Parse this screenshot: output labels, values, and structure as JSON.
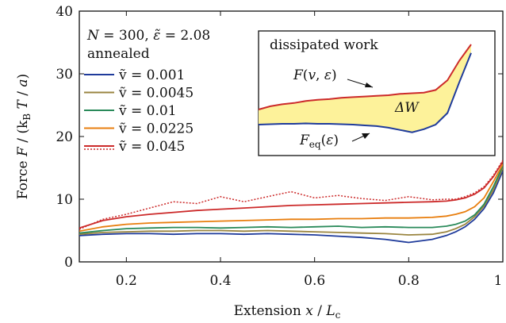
{
  "chart_data": {
    "type": "line",
    "xlabel": "Extension x / L_c",
    "ylabel": "Force F / (k_B T / a)",
    "xlim": [
      0.1,
      1.0
    ],
    "ylim": [
      0,
      40
    ],
    "xticks": [
      "0.2",
      "0.4",
      "0.6",
      "0.8",
      "1"
    ],
    "yticks": [
      "0",
      "10",
      "20",
      "30",
      "40"
    ],
    "grid": false,
    "legend": {
      "placement": "top-left",
      "header_line1": "N = 300, ε̃ = 2.08",
      "header_line2": "annealed"
    },
    "x": [
      0.1,
      0.15,
      0.2,
      0.25,
      0.3,
      0.35,
      0.4,
      0.45,
      0.5,
      0.55,
      0.6,
      0.65,
      0.7,
      0.75,
      0.8,
      0.85,
      0.88,
      0.9,
      0.92,
      0.94,
      0.96,
      0.98,
      1.0
    ],
    "series": [
      {
        "name": "ṽ = 0.001",
        "color": "#1f3b9b",
        "style": "solid",
        "values": [
          4.2,
          4.4,
          4.5,
          4.5,
          4.4,
          4.5,
          4.5,
          4.4,
          4.5,
          4.4,
          4.3,
          4.1,
          3.9,
          3.6,
          3.1,
          3.6,
          4.2,
          4.8,
          5.6,
          6.8,
          8.5,
          11.0,
          14.5
        ]
      },
      {
        "name": "ṽ = 0.0045",
        "color": "#9a8540",
        "style": "solid",
        "values": [
          4.4,
          4.7,
          4.8,
          4.9,
          4.9,
          5.0,
          5.0,
          4.9,
          5.0,
          4.9,
          4.8,
          4.7,
          4.6,
          4.5,
          4.3,
          4.4,
          4.8,
          5.3,
          6.0,
          7.2,
          8.9,
          11.5,
          15.0
        ]
      },
      {
        "name": "ṽ = 0.01",
        "color": "#2a8a5a",
        "style": "solid",
        "values": [
          4.6,
          5.0,
          5.3,
          5.4,
          5.5,
          5.5,
          5.4,
          5.5,
          5.6,
          5.5,
          5.6,
          5.7,
          5.5,
          5.6,
          5.5,
          5.5,
          5.7,
          6.0,
          6.5,
          7.5,
          9.2,
          12.0,
          15.3
        ]
      },
      {
        "name": "ṽ = 0.0225",
        "color": "#e87e0e",
        "style": "solid",
        "values": [
          4.9,
          5.6,
          6.0,
          6.2,
          6.3,
          6.4,
          6.5,
          6.6,
          6.7,
          6.8,
          6.8,
          6.9,
          6.9,
          7.0,
          7.0,
          7.1,
          7.3,
          7.6,
          8.0,
          8.8,
          10.2,
          12.8,
          15.6
        ]
      },
      {
        "name": "ṽ = 0.045",
        "color": "#cc2a2a",
        "style": "solid",
        "values": [
          5.4,
          6.6,
          7.2,
          7.6,
          7.9,
          8.2,
          8.4,
          8.6,
          8.8,
          9.0,
          9.1,
          9.2,
          9.3,
          9.4,
          9.5,
          9.6,
          9.7,
          9.9,
          10.2,
          10.8,
          11.8,
          13.6,
          16.0
        ]
      },
      {
        "name": "ṽ = 0.045",
        "color": "#cc2a2a",
        "style": "dotted",
        "values": [
          5.2,
          6.8,
          7.6,
          8.6,
          9.6,
          9.3,
          10.4,
          9.6,
          10.4,
          11.2,
          10.2,
          10.6,
          10.1,
          9.8,
          10.4,
          9.9,
          10.0,
          10.0,
          10.4,
          11.0,
          12.0,
          13.8,
          16.2
        ]
      }
    ]
  },
  "inset": {
    "title": "dissipated work",
    "upper_label": "F(v, ε)",
    "lower_label": "F_eq(ε)",
    "area_label": "ΔW",
    "fill_color": "#fdf29a",
    "upper_values": [
      0.0,
      0.05,
      0.08,
      0.1,
      0.13,
      0.15,
      0.16,
      0.18,
      0.19,
      0.2,
      0.21,
      0.22,
      0.24,
      0.25,
      0.26,
      0.3,
      0.45,
      0.75,
      1.0
    ],
    "lower_values": [
      0.0,
      0.005,
      0.01,
      0.01,
      0.015,
      0.01,
      0.01,
      0.005,
      0.0,
      -0.01,
      -0.02,
      -0.04,
      -0.07,
      -0.1,
      -0.06,
      0.0,
      0.15,
      0.55,
      0.93
    ]
  },
  "legend_labels": {
    "l1": "ṽ = 0.001",
    "l2": "ṽ = 0.0045",
    "l3": "ṽ = 0.01",
    "l4": "ṽ = 0.0225",
    "l5": "ṽ = 0.045"
  }
}
